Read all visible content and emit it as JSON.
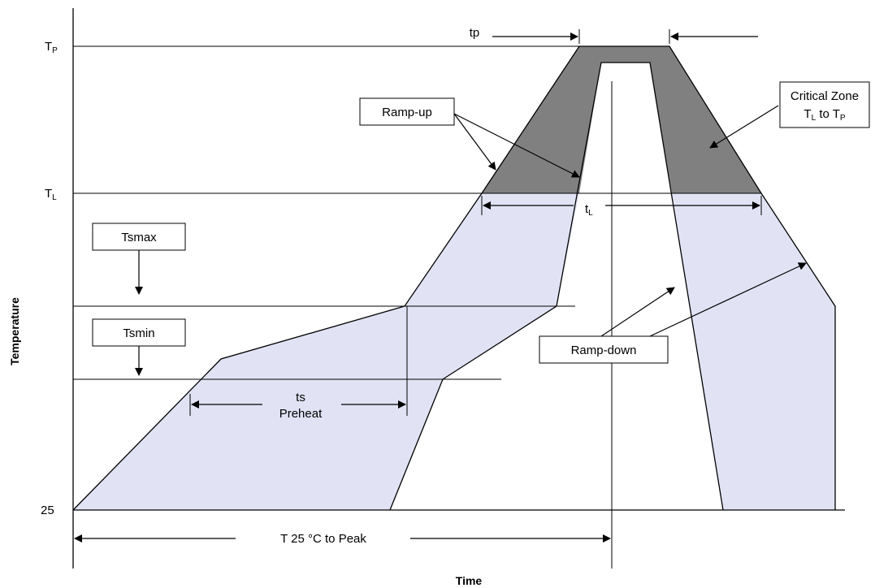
{
  "colors": {
    "preheat_fill": "#e1e3f5",
    "critical_fill": "#808080",
    "line": "#000000"
  },
  "axes": {
    "x_title": "Time",
    "y_title": "Temperature",
    "y_tick_tp_main": "T",
    "y_tick_tp_sub": "P",
    "y_tick_tl_main": "T",
    "y_tick_tl_sub": "L",
    "y_tick_25": "25"
  },
  "labels": {
    "tp": "tp",
    "tl_main": "t",
    "tl_sub": "L",
    "ts_line1": "ts",
    "ts_line2": "Preheat",
    "t25_to_peak": "T 25 °C to Peak"
  },
  "boxes": {
    "ramp_up": "Ramp-up",
    "ramp_down": "Ramp-down",
    "tsmax": "Tsmax",
    "tsmin": "Tsmin",
    "critical_line1": "Critical Zone",
    "critical_line2_t1": "T",
    "critical_line2_s1": "L",
    "critical_line2_mid": " to T",
    "critical_line2_s2": "P"
  }
}
